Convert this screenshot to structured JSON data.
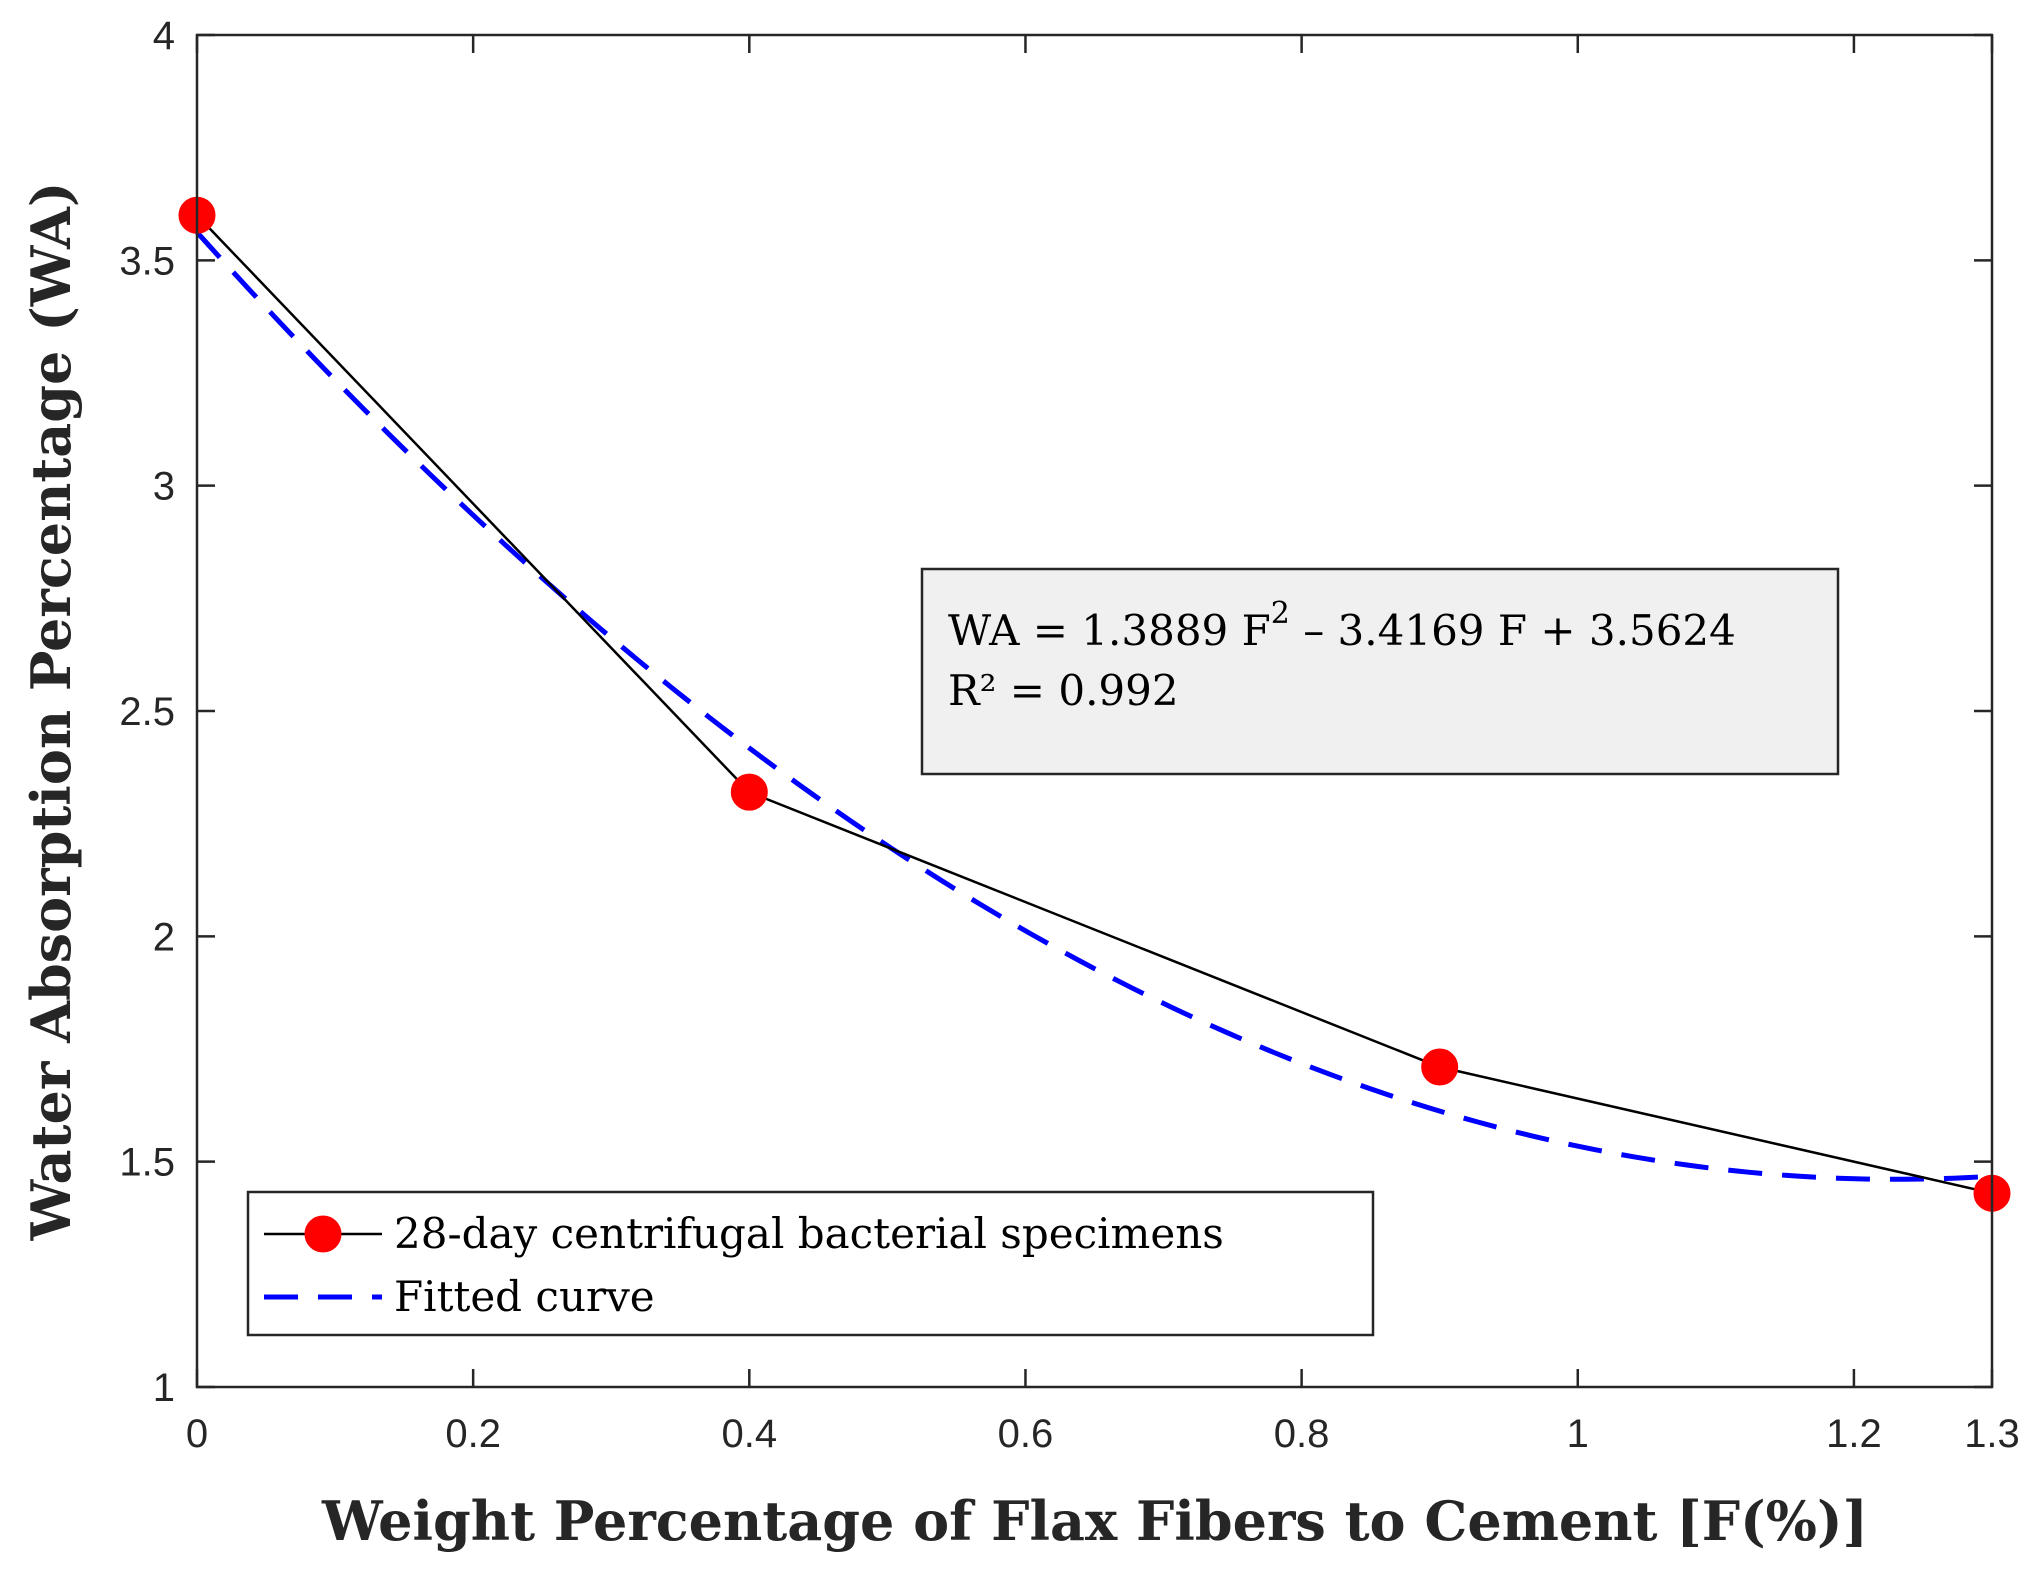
{
  "chart_data": {
    "type": "line",
    "title": "",
    "xlabel": "Weight Percentage of Flax Fibers to Cement [F(%)]",
    "ylabel": "Water Absorption Percentage (WA)",
    "xlim": [
      0,
      1.3
    ],
    "ylim": [
      1,
      4
    ],
    "xticks": [
      0,
      0.2,
      0.4,
      0.6,
      0.8,
      1,
      1.2,
      1.3
    ],
    "xtick_labels": [
      "0",
      "0.2",
      "0.4",
      "0.6",
      "0.8",
      "1",
      "1.2",
      "1.3"
    ],
    "yticks": [
      1,
      1.5,
      2,
      2.5,
      3,
      3.5,
      4
    ],
    "ytick_labels": [
      "1",
      "1.5",
      "2",
      "2.5",
      "3",
      "3.5",
      "4"
    ],
    "grid": false,
    "series": [
      {
        "name": "28-day centrifugal bacterial specimens",
        "style": "solid line with circle markers",
        "line_color": "#000000",
        "marker_color": "#ff0000",
        "x": [
          0,
          0.4,
          0.9,
          1.3
        ],
        "y": [
          3.6,
          2.32,
          1.71,
          1.43
        ]
      },
      {
        "name": "Fitted curve",
        "style": "dashed",
        "color": "#0000ff",
        "model": {
          "a": 1.3889,
          "b": -3.4169,
          "c": 3.5624
        },
        "x_range": [
          0,
          1.3
        ]
      }
    ],
    "annotation": {
      "line1": "WA = 1.3889 F",
      "line1_exp": "2",
      "line1_rest": " – 3.4169 F + 3.5624",
      "line2": "R² = 0.992",
      "background": "#f0f0f0"
    },
    "legend": {
      "position": "bottom-left",
      "entries": [
        "28-day centrifugal bacterial specimens",
        "Fitted curve"
      ]
    }
  }
}
